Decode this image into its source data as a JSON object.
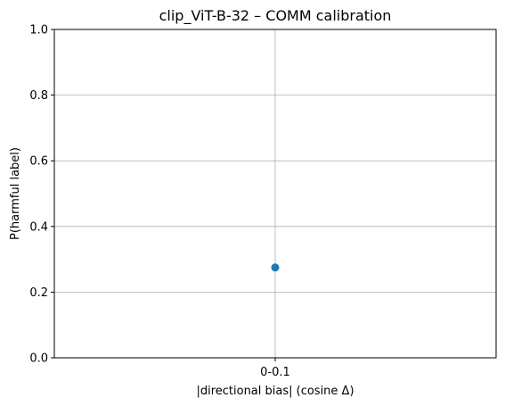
{
  "chart_data": {
    "type": "scatter",
    "title": "clip_ViT-B-32 – COMM calibration",
    "xlabel": "|directional bias| (cosine Δ)",
    "ylabel": "P(harmful label)",
    "categories": [
      "0-0.1"
    ],
    "series": [
      {
        "values": [
          0.275
        ],
        "color": "#1f77b4"
      }
    ],
    "ylim": [
      0,
      1
    ],
    "yticks": [
      0.0,
      0.2,
      0.4,
      0.6,
      0.8,
      1.0
    ],
    "ytick_labels": [
      "0.0",
      "0.2",
      "0.4",
      "0.6",
      "0.8",
      "1.0"
    ],
    "grid": true
  }
}
